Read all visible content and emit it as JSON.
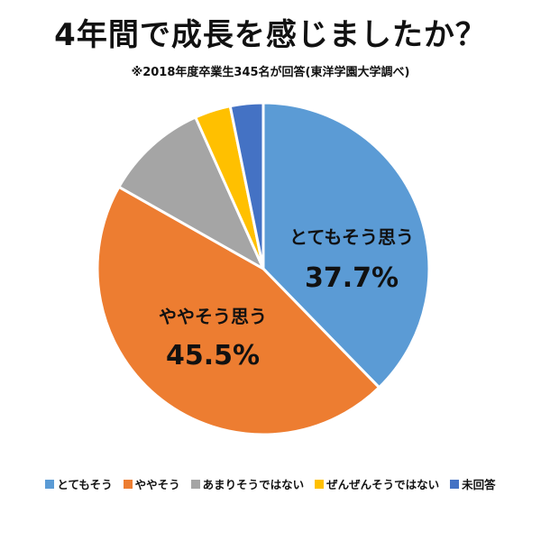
{
  "chart_data": {
    "type": "pie",
    "title": "4年間で成長を感じましたか？",
    "subtitle": "※2018年度卒業生345名が回答(東洋学園大学調べ)",
    "legend_position": "bottom",
    "slices": [
      {
        "label": "とてもそう",
        "value": 37.7,
        "color": "#5B9BD5",
        "data_label": "とてもそう思う",
        "value_label": "37.7%"
      },
      {
        "label": "ややそう",
        "value": 45.5,
        "color": "#ED7D31",
        "data_label": "ややそう思う",
        "value_label": "45.5%"
      },
      {
        "label": "あまりそうではない",
        "value": 10.1,
        "color": "#A5A5A5"
      },
      {
        "label": "ぜんぜんそうではない",
        "value": 3.5,
        "color": "#FFC000"
      },
      {
        "label": "未回答",
        "value": 3.2,
        "color": "#4472C4"
      }
    ]
  }
}
